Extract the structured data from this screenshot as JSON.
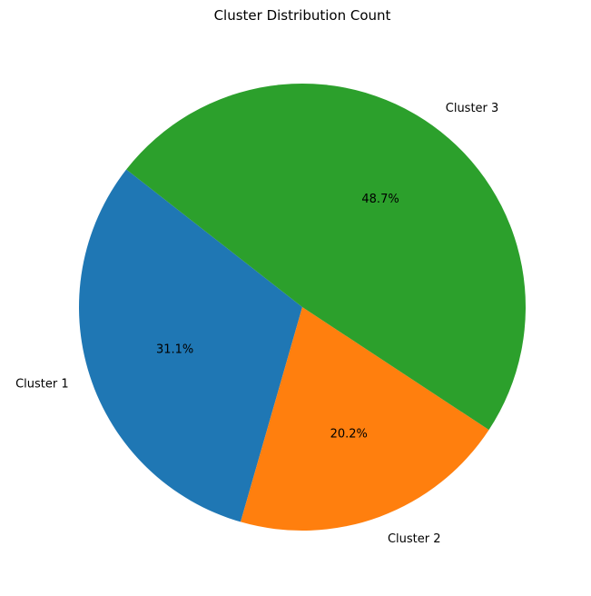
{
  "chart_data": {
    "type": "pie",
    "title": "Cluster Distribution Count",
    "categories": [
      "Cluster 1",
      "Cluster 2",
      "Cluster 3"
    ],
    "values": [
      31.1,
      20.2,
      48.7
    ],
    "value_labels": [
      "31.1%",
      "20.2%",
      "48.7%"
    ],
    "colors": [
      "#1f77b4",
      "#ff7f0e",
      "#2ca02c"
    ],
    "legend": "none"
  }
}
